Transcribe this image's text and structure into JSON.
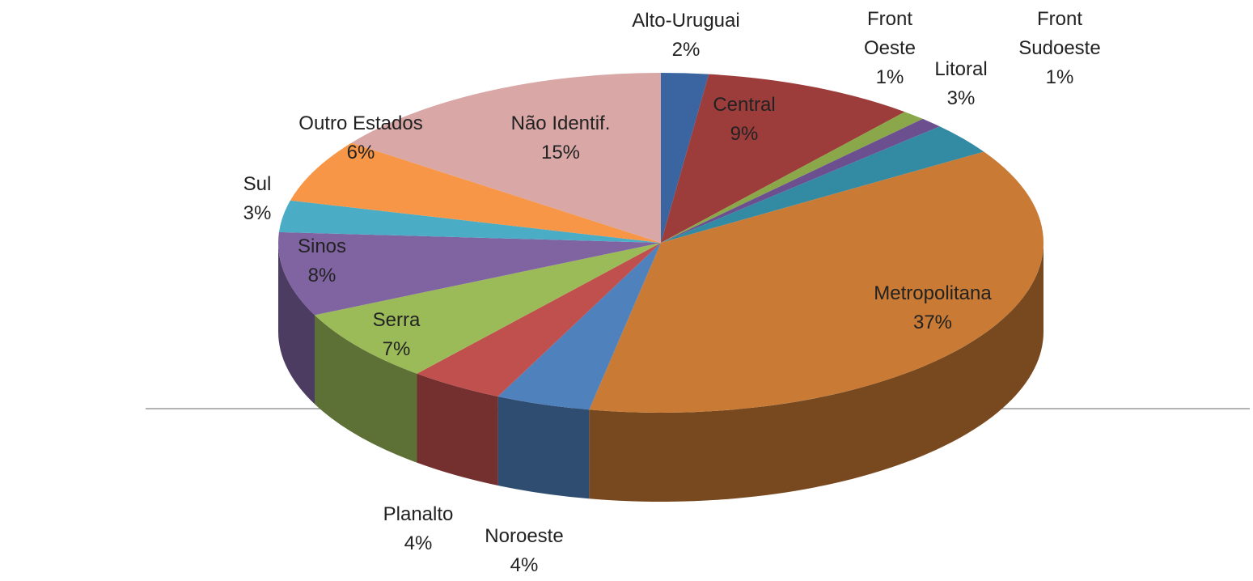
{
  "chart_data": {
    "type": "pie",
    "categories": [
      "Alto-Uruguai",
      "Central",
      "Front Oeste",
      "Front Sudoeste",
      "Litoral",
      "Metropolitana",
      "Noroeste",
      "Planalto",
      "Serra",
      "Sinos",
      "Sul",
      "Outro Estados",
      "Não Identif."
    ],
    "values": [
      2,
      9,
      1,
      1,
      3,
      37,
      4,
      4,
      7,
      8,
      3,
      6,
      15
    ],
    "value_labels": [
      "2%",
      "9%",
      "1%",
      "1%",
      "3%",
      "37%",
      "4%",
      "4%",
      "7%",
      "8%",
      "3%",
      "6%",
      "15%"
    ],
    "colors": [
      "#3a65a0",
      "#9c3d3b",
      "#8aa84a",
      "#6b4f8f",
      "#338ba3",
      "#c97a35",
      "#4f81bd",
      "#c0504d",
      "#9bbb59",
      "#8064a2",
      "#4bacc6",
      "#f79646",
      "#d8a7a6"
    ]
  }
}
